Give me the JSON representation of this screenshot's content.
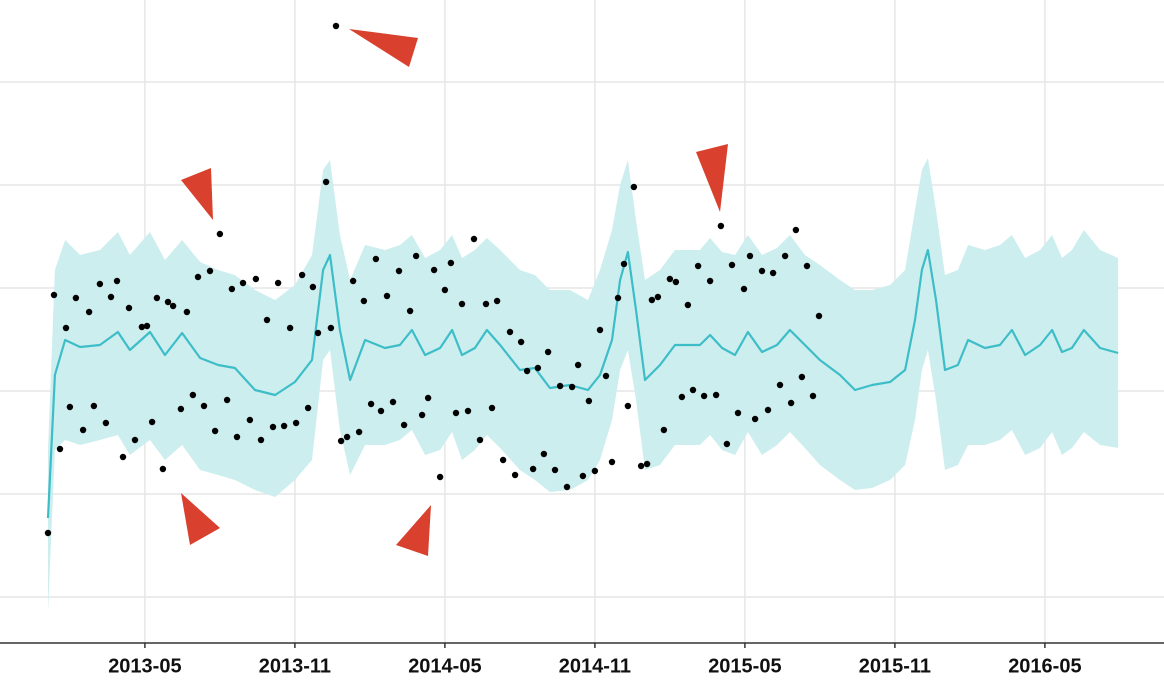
{
  "chart_data": {
    "type": "forecast",
    "xlim": [
      2012.85,
      2016.73
    ],
    "ylim": [
      -43,
      600
    ],
    "xticks": [
      {
        "value": 2013.333,
        "label": "2013-05"
      },
      {
        "value": 2013.833,
        "label": "2013-11"
      },
      {
        "value": 2014.333,
        "label": "2014-05"
      },
      {
        "value": 2014.833,
        "label": "2014-11"
      },
      {
        "value": 2015.333,
        "label": "2015-05"
      },
      {
        "value": 2015.833,
        "label": "2015-11"
      },
      {
        "value": 2016.333,
        "label": "2016-05"
      }
    ],
    "ygrid": [
      3,
      106,
      209,
      312,
      415,
      518
    ],
    "grid": true,
    "x": [
      2013.01,
      2013.033,
      2013.067,
      2013.117,
      2013.183,
      2013.243,
      2013.283,
      2013.35,
      2013.4,
      2013.457,
      2013.517,
      2013.577,
      2013.633,
      2013.7,
      2013.767,
      2013.833,
      2013.89,
      2013.927,
      2013.95,
      2013.983,
      2014.017,
      2014.067,
      2014.133,
      2014.183,
      2014.223,
      2014.267,
      2014.317,
      2014.357,
      2014.39,
      2014.433,
      2014.473,
      2014.517,
      2014.583,
      2014.633,
      2014.683,
      2014.75,
      2014.81,
      2014.85,
      2014.89,
      2014.917,
      2014.943,
      2014.97,
      2015.0,
      2015.05,
      2015.1,
      2015.183,
      2015.217,
      2015.257,
      2015.3,
      2015.343,
      2015.39,
      2015.44,
      2015.483,
      2015.533,
      2015.583,
      2015.65,
      2015.7,
      2015.757,
      2015.817,
      2015.867,
      2015.9,
      2015.923,
      2015.943,
      2015.97,
      2016.0,
      2016.043,
      2016.077,
      2016.133,
      2016.183,
      2016.223,
      2016.267,
      2016.317,
      2016.357,
      2016.39,
      2016.423,
      2016.463,
      2016.517,
      2016.577
    ],
    "forecast": {
      "color": "#3dbdc8",
      "values": [
        82,
        225,
        260,
        253,
        255,
        268,
        250,
        268,
        245,
        267,
        242,
        235,
        232,
        210,
        205,
        218,
        240,
        330,
        345,
        270,
        220,
        260,
        252,
        255,
        270,
        245,
        252,
        270,
        245,
        252,
        270,
        255,
        230,
        232,
        212,
        215,
        210,
        225,
        260,
        320,
        348,
        290,
        220,
        235,
        255,
        255,
        265,
        252,
        245,
        268,
        248,
        255,
        270,
        255,
        240,
        225,
        210,
        215,
        218,
        230,
        280,
        330,
        350,
        300,
        230,
        235,
        260,
        252,
        255,
        270,
        245,
        255,
        270,
        248,
        252,
        270,
        252,
        247
      ]
    },
    "band": {
      "color": "#cdeeee",
      "upper": [
        150,
        330,
        360,
        345,
        350,
        368,
        345,
        368,
        340,
        360,
        338,
        330,
        325,
        310,
        300,
        315,
        345,
        430,
        440,
        365,
        320,
        355,
        350,
        355,
        365,
        342,
        350,
        365,
        342,
        350,
        362,
        350,
        330,
        325,
        310,
        310,
        300,
        330,
        370,
        415,
        440,
        380,
        320,
        330,
        350,
        350,
        362,
        348,
        345,
        365,
        345,
        352,
        365,
        345,
        335,
        320,
        310,
        310,
        315,
        330,
        390,
        430,
        442,
        390,
        325,
        330,
        355,
        350,
        355,
        365,
        342,
        350,
        365,
        342,
        350,
        370,
        350,
        342
      ],
      "lower": [
        -12,
        150,
        160,
        155,
        160,
        165,
        145,
        160,
        140,
        155,
        130,
        125,
        120,
        110,
        103,
        120,
        140,
        240,
        250,
        170,
        125,
        155,
        155,
        160,
        170,
        145,
        150,
        168,
        140,
        150,
        165,
        152,
        130,
        120,
        108,
        110,
        120,
        140,
        180,
        230,
        250,
        200,
        130,
        135,
        155,
        155,
        165,
        150,
        145,
        168,
        145,
        155,
        168,
        152,
        135,
        120,
        110,
        112,
        120,
        135,
        180,
        230,
        250,
        200,
        130,
        135,
        155,
        155,
        160,
        170,
        145,
        152,
        168,
        145,
        152,
        168,
        155,
        152
      ]
    },
    "points": {
      "color": "#000000",
      "x": [
        2013.01,
        2013.03,
        2013.05,
        2013.07,
        2013.083,
        2013.103,
        2013.127,
        2013.147,
        2013.163,
        2013.183,
        2013.203,
        2013.22,
        2013.24,
        2013.26,
        2013.28,
        2013.3,
        2013.323,
        2013.34,
        2013.357,
        2013.373,
        2013.393,
        2013.41,
        2013.427,
        2013.453,
        2013.473,
        2013.493,
        2013.51,
        2013.53,
        2013.55,
        2013.567,
        2013.583,
        2013.607,
        2013.623,
        2013.64,
        2013.66,
        2013.683,
        2013.703,
        2013.72,
        2013.74,
        2013.76,
        2013.777,
        2013.797,
        2013.817,
        2013.837,
        2013.857,
        2013.877,
        2013.893,
        2013.91,
        2013.937,
        2013.953,
        2013.97,
        2013.987,
        2014.007,
        2014.027,
        2014.047,
        2014.063,
        2014.087,
        2014.103,
        2014.12,
        2014.14,
        2014.16,
        2014.18,
        2014.197,
        2014.217,
        2014.237,
        2014.257,
        2014.277,
        2014.297,
        2014.317,
        2014.333,
        2014.353,
        2014.37,
        2014.39,
        2014.41,
        2014.43,
        2014.45,
        2014.47,
        2014.49,
        2014.507,
        2014.527,
        2014.55,
        2014.567,
        2014.587,
        2014.607,
        2014.627,
        2014.643,
        2014.663,
        2014.677,
        2014.7,
        2014.717,
        2014.74,
        2014.757,
        2014.777,
        2014.793,
        2014.813,
        2014.833,
        2014.85,
        2014.87,
        2014.89,
        2014.91,
        2014.93,
        2014.943,
        2014.963,
        2014.987,
        2015.007,
        2015.023,
        2015.043,
        2015.063,
        2015.083,
        2015.103,
        2015.123,
        2015.143,
        2015.16,
        2015.177,
        2015.197,
        2015.217,
        2015.237,
        2015.253,
        2015.273,
        2015.29,
        2015.31,
        2015.33,
        2015.35,
        2015.367,
        2015.39,
        2015.41,
        2015.427,
        2015.45,
        2015.467,
        2015.487,
        2015.503,
        2015.523,
        2015.54,
        2015.56,
        2015.58
      ],
      "values": [
        67,
        305,
        151,
        272,
        193,
        302,
        170,
        288,
        194,
        316,
        177,
        303,
        319,
        143,
        292,
        160,
        273,
        274,
        178,
        302,
        131,
        298,
        294,
        191,
        288,
        205,
        323,
        194,
        329,
        169,
        366,
        200,
        311,
        163,
        317,
        180,
        321,
        160,
        280,
        173,
        317,
        174,
        272,
        177,
        325,
        192,
        313,
        267,
        418,
        272,
        574,
        159,
        163,
        319,
        168,
        299,
        196,
        341,
        189,
        304,
        198,
        329,
        175,
        289,
        344,
        185,
        202,
        330,
        123,
        310,
        337,
        187,
        296,
        189,
        361,
        160,
        296,
        192,
        299,
        140,
        268,
        125,
        258,
        229,
        131,
        232,
        146,
        248,
        130,
        214,
        113,
        213,
        235,
        124,
        199,
        129,
        270,
        224,
        138,
        302,
        336,
        194,
        413,
        134,
        136,
        300,
        303,
        170,
        321,
        318,
        203,
        295,
        210,
        334,
        204,
        319,
        205,
        374,
        156,
        335,
        187,
        311,
        344,
        181,
        329,
        190,
        327,
        215,
        344,
        197,
        370,
        223,
        334,
        204,
        284
      ]
    }
  }
}
